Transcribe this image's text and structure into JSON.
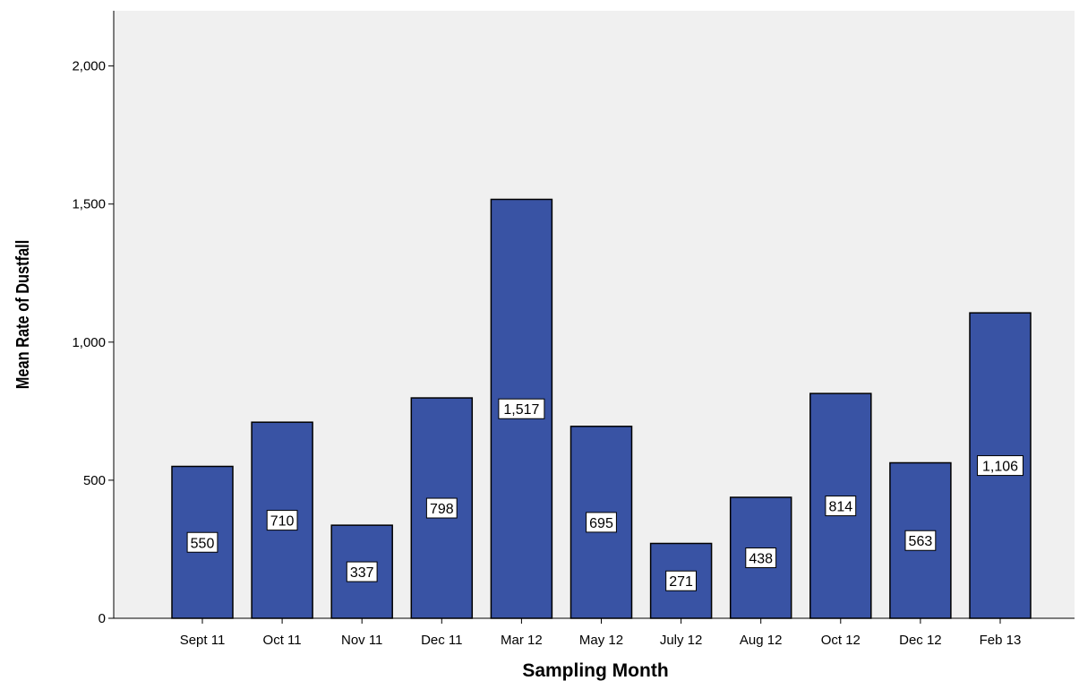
{
  "chart_data": {
    "type": "bar",
    "title": "",
    "xlabel": "Sampling Month",
    "ylabel": "Mean Rate of Dustfall",
    "categories": [
      "Sept 11",
      "Oct 11",
      "Nov 11",
      "Dec 11",
      "Mar 12",
      "May 12",
      "July 12",
      "Aug 12",
      "Oct 12",
      "Dec 12",
      "Feb 13"
    ],
    "values": [
      550,
      710,
      337,
      798,
      1517,
      695,
      271,
      438,
      814,
      563,
      1106
    ],
    "data_labels": [
      "550",
      "710",
      "337",
      "798",
      "1,517",
      "695",
      "271",
      "438",
      "814",
      "563",
      "1,106"
    ],
    "yticks": [
      0,
      500,
      1000,
      1500,
      2000
    ],
    "ytick_labels": [
      "0",
      "500",
      "1,000",
      "1,500",
      "2,000"
    ],
    "ylim": [
      0,
      2200
    ],
    "grid": false,
    "legend": "none",
    "colors": {
      "bar": "#3953a4",
      "bar_outline": "#000000",
      "plot_background": "#f0f0f0",
      "label_box": "#ffffff"
    }
  }
}
